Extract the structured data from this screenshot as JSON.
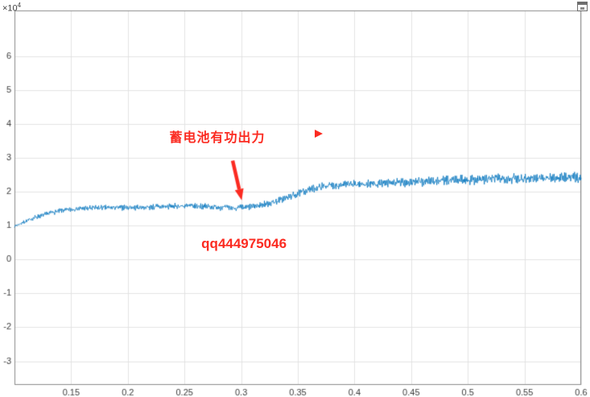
{
  "figure": {
    "background": "#ffffff"
  },
  "corner_icon": {
    "name": "open-in-window-icon"
  },
  "chart_data": {
    "type": "line",
    "title": "",
    "xlabel": "",
    "ylabel": "",
    "xlim": [
      0.1,
      0.6
    ],
    "ylim": [
      -37000,
      73500
    ],
    "grid": true,
    "legend_position": "none",
    "x_ticks": {
      "values": [
        0.15,
        0.2,
        0.25,
        0.3,
        0.35,
        0.4,
        0.45,
        0.5,
        0.55,
        0.6
      ],
      "labels": [
        "0.15",
        "0.2",
        "0.25",
        "0.3",
        "0.35",
        "0.4",
        "0.45",
        "0.5",
        "0.55",
        "0.6"
      ]
    },
    "y_ticks": {
      "values": [
        -30000,
        -20000,
        -10000,
        0,
        10000,
        20000,
        30000,
        40000,
        50000,
        60000
      ],
      "labels": [
        "-3",
        "-2",
        "-1",
        "0",
        "1",
        "2",
        "3",
        "4",
        "5",
        "6"
      ]
    },
    "y_axis_exponent": {
      "prefix": "×10",
      "exp": "4"
    },
    "series": [
      {
        "name": "battery-active-power",
        "color": "#0072BD",
        "line_width": 0.8,
        "samples": 1300,
        "seed": 7,
        "envelope_x": [
          0.1,
          0.108,
          0.118,
          0.13,
          0.142,
          0.155,
          0.17,
          0.19,
          0.21,
          0.23,
          0.25,
          0.268,
          0.283,
          0.295,
          0.305,
          0.315,
          0.325,
          0.335,
          0.345,
          0.355,
          0.365,
          0.375,
          0.39,
          0.41,
          0.43,
          0.455,
          0.48,
          0.51,
          0.545,
          0.6
        ],
        "envelope_y": [
          9800,
          11000,
          12400,
          13600,
          14500,
          15000,
          15200,
          15300,
          15400,
          15600,
          15800,
          15700,
          15400,
          15200,
          15400,
          15900,
          16600,
          17600,
          18800,
          20100,
          21100,
          21800,
          22100,
          22300,
          22500,
          22900,
          23300,
          23700,
          24000,
          24200
        ],
        "noise_amp": [
          500,
          550,
          600,
          650,
          700,
          750,
          750,
          750,
          800,
          800,
          850,
          850,
          850,
          850,
          850,
          900,
          900,
          900,
          950,
          1000,
          1050,
          1100,
          1100,
          1150,
          1200,
          1300,
          1350,
          1400,
          1400,
          1400
        ]
      }
    ],
    "annotations": {
      "battery_label": {
        "text": "蓄电池有功出力",
        "x": 0.279,
        "y": 36500,
        "color": "#fb2b21"
      },
      "qq_label": {
        "text": "qq444975046",
        "x": 0.3025,
        "y": 4500,
        "color": "#fb2b21"
      },
      "triangle_marker": {
        "x": 0.3685,
        "y": 37200,
        "color": "#fb2b21"
      },
      "arrow": {
        "x1": 0.2925,
        "y1": 29200,
        "x2": 0.3005,
        "y2": 17500,
        "color": "#fb2b21"
      }
    },
    "colors": {
      "line": "#0072BD",
      "grid": "#e3e3e3",
      "axis_box": "#8c8c8c",
      "tick_text": "#3d3d3d",
      "annotation": "#fb2b21",
      "background": "#ffffff"
    }
  }
}
